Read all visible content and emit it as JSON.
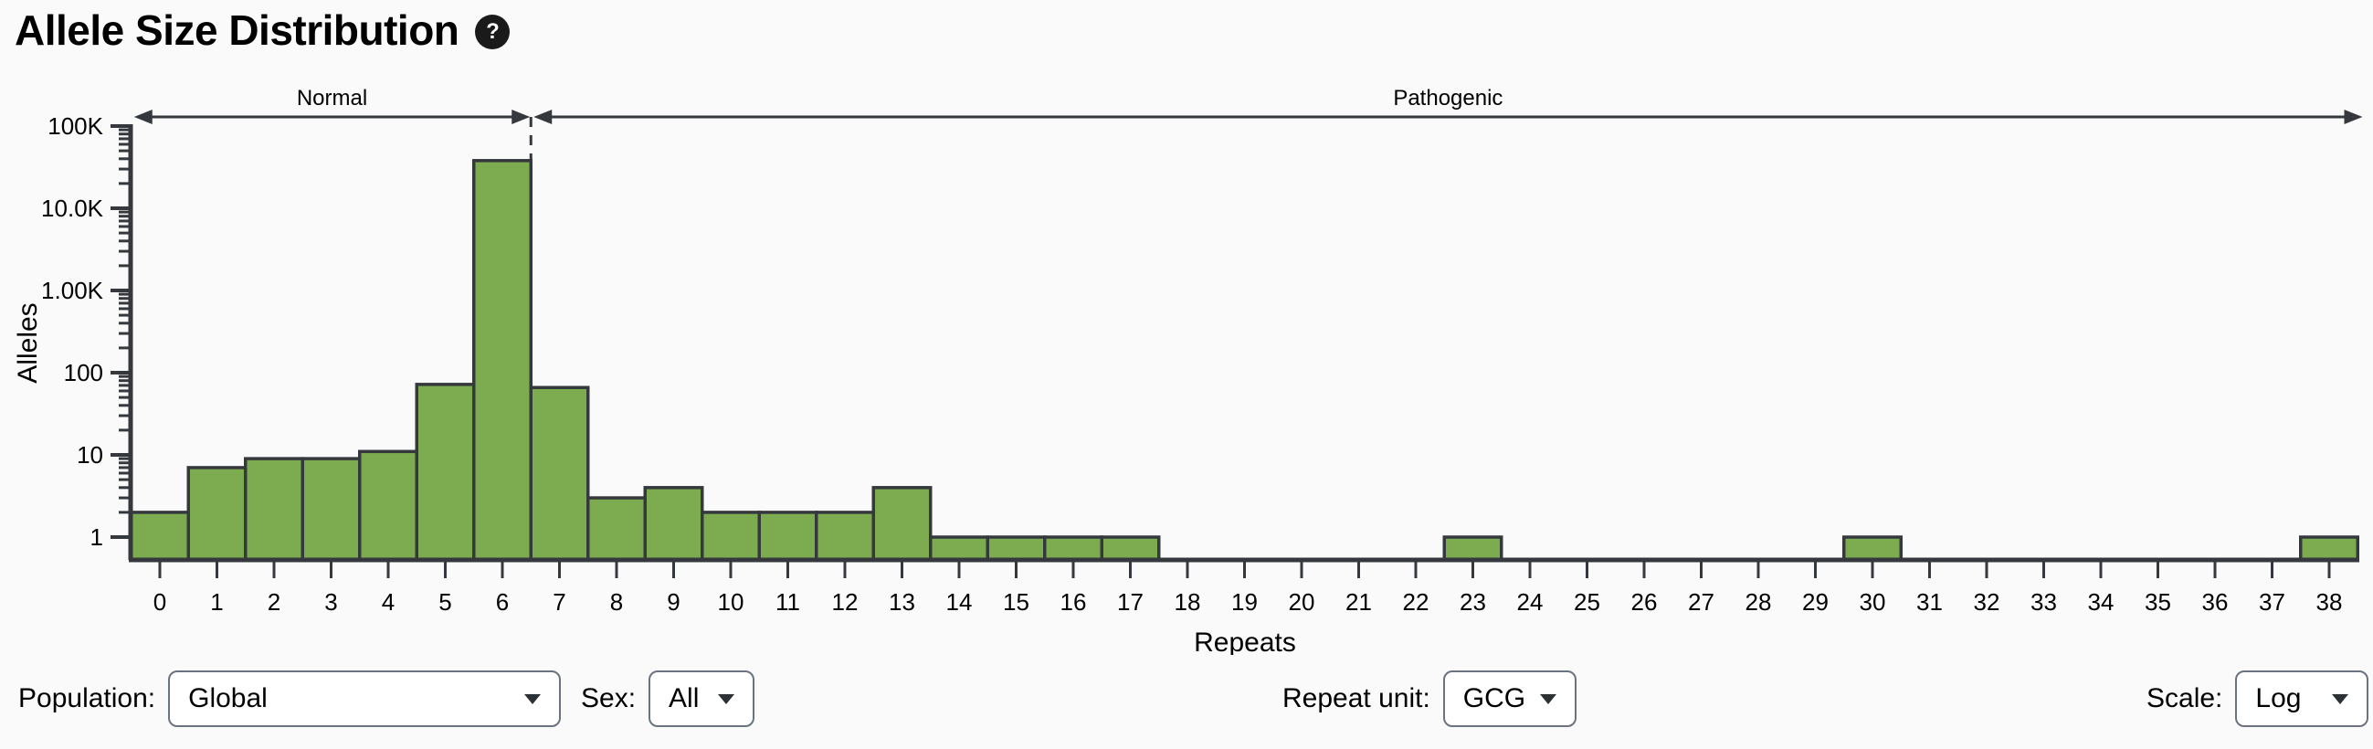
{
  "header": {
    "title": "Allele Size Distribution",
    "help_icon_glyph": "?"
  },
  "chart_data": {
    "type": "bar",
    "title": "Allele Size Distribution",
    "xlabel": "Repeats",
    "ylabel": "Alleles",
    "yscale": "log",
    "ylim": [
      1,
      100000
    ],
    "grid": false,
    "x": [
      0,
      1,
      2,
      3,
      4,
      5,
      6,
      7,
      8,
      9,
      10,
      11,
      12,
      13,
      14,
      15,
      16,
      17,
      18,
      19,
      20,
      21,
      22,
      23,
      24,
      25,
      26,
      27,
      28,
      29,
      30,
      31,
      32,
      33,
      34,
      35,
      36,
      37,
      38
    ],
    "values": [
      2,
      7,
      9,
      9,
      11,
      72,
      38000,
      66,
      3,
      4,
      2,
      2,
      2,
      4,
      1,
      1,
      1,
      1,
      0,
      0,
      0,
      0,
      0,
      1,
      0,
      0,
      0,
      0,
      0,
      0,
      1,
      0,
      0,
      0,
      0,
      0,
      0,
      0,
      1
    ],
    "y_tick_values": [
      1,
      10,
      100,
      1000,
      10000,
      100000
    ],
    "y_tick_labels": [
      "1",
      "10",
      "100",
      "1.00K",
      "10.0K",
      "100K"
    ],
    "threshold_x": 6.5,
    "regions": [
      {
        "label": "Normal",
        "from": -0.5,
        "to": 6.5
      },
      {
        "label": "Pathogenic",
        "from": 6.5,
        "to": 38.6
      }
    ],
    "bar_color": "#7dab4f",
    "bar_border_color": "#35393d",
    "axis_color": "#35393d"
  },
  "controls": {
    "population": {
      "label": "Population:",
      "value": "Global"
    },
    "sex": {
      "label": "Sex:",
      "value": "All"
    },
    "repeat_unit": {
      "label": "Repeat unit:",
      "value": "GCG"
    },
    "scale": {
      "label": "Scale:",
      "value": "Log"
    }
  }
}
